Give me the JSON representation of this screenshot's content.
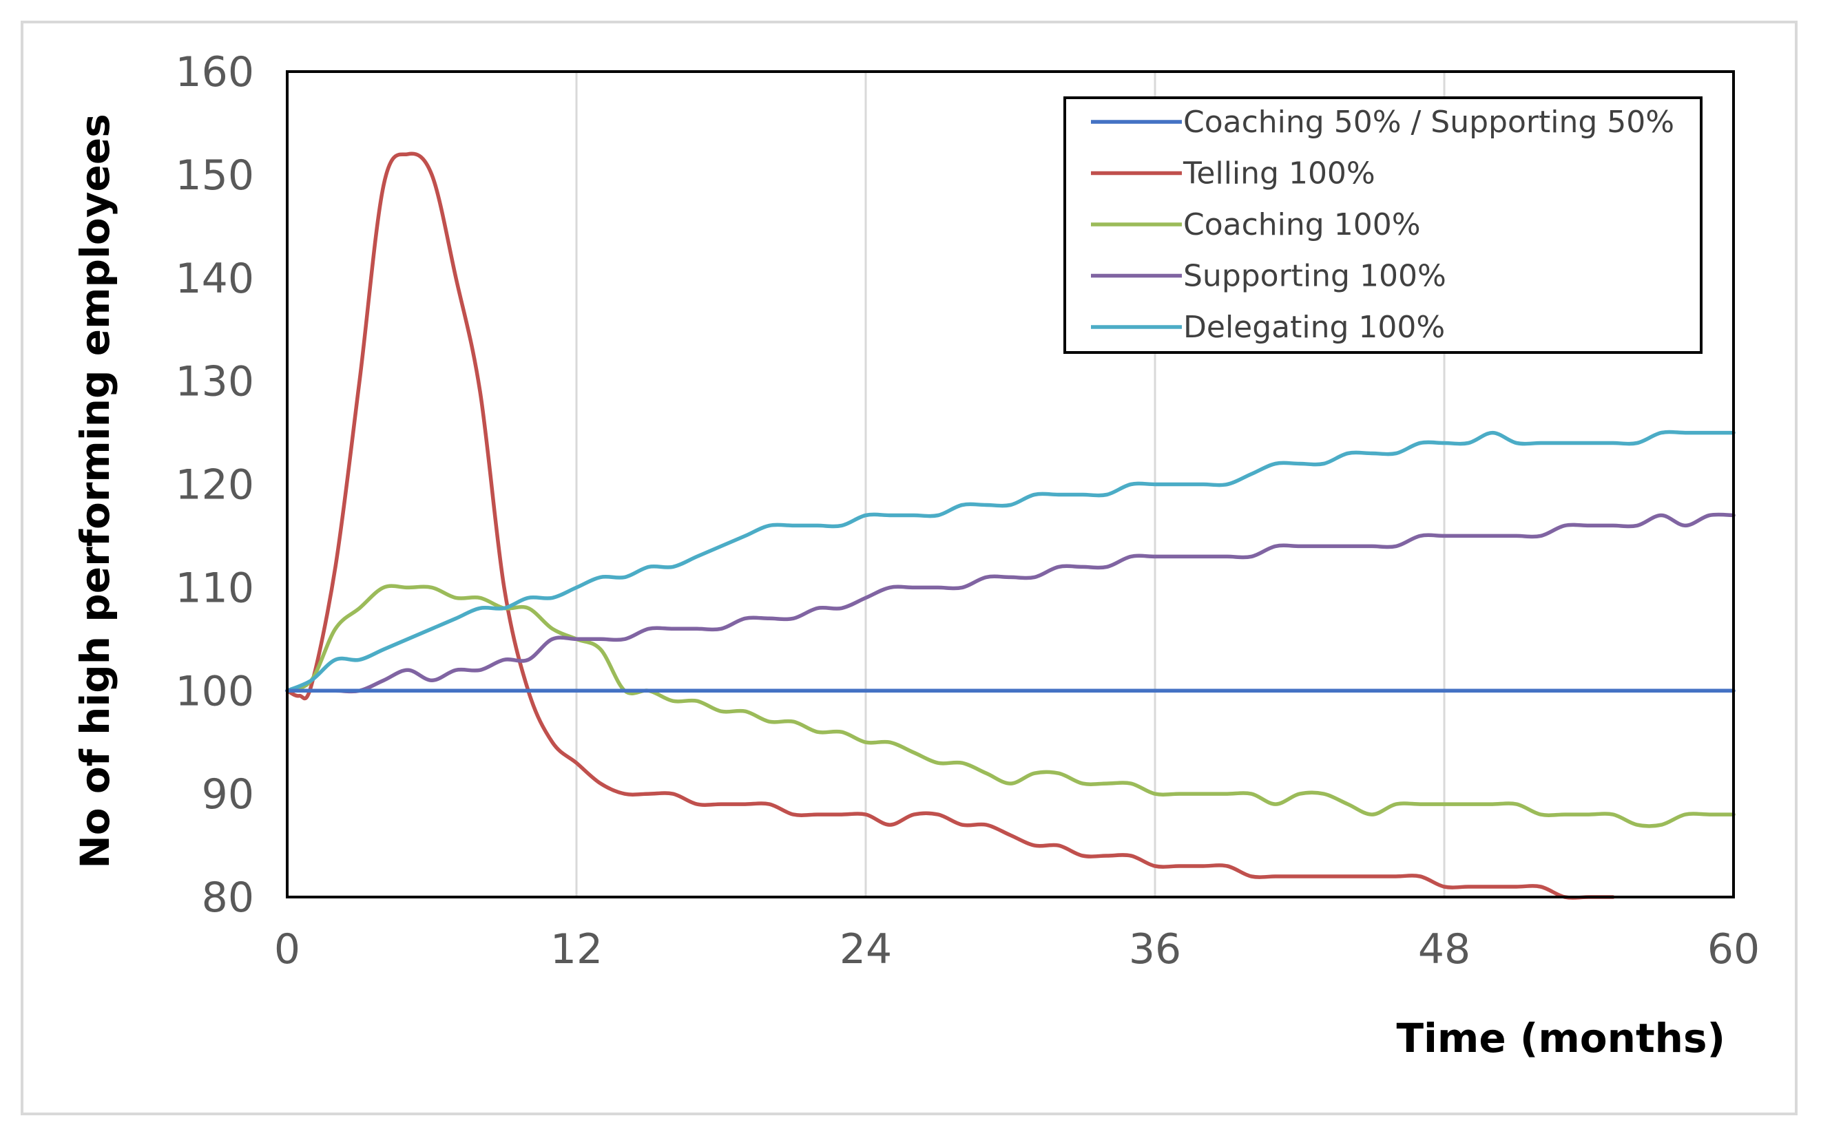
{
  "chart_data": {
    "type": "line",
    "title": "",
    "xlabel": "Time (months)",
    "ylabel": "No of high performing employees",
    "xlim": [
      0,
      60
    ],
    "ylim": [
      80,
      160
    ],
    "x_ticks": [
      0,
      12,
      24,
      36,
      48,
      60
    ],
    "y_ticks": [
      80,
      90,
      100,
      110,
      120,
      130,
      140,
      150,
      160
    ],
    "grid": "vertical gridlines at x ticks",
    "legend_position": "top-right",
    "series": [
      {
        "name": "Coaching 50% / Supporting 50%",
        "color": "#4472C4",
        "points": [
          [
            0,
            100
          ],
          [
            60,
            100
          ]
        ]
      },
      {
        "name": "Telling 100%",
        "color": "#C0504D",
        "points": [
          [
            0,
            100
          ],
          [
            0.5,
            99.5
          ],
          [
            1,
            100.5
          ],
          [
            2,
            112
          ],
          [
            3,
            130
          ],
          [
            4,
            149
          ],
          [
            5,
            152
          ],
          [
            6,
            150
          ],
          [
            7,
            140
          ],
          [
            8,
            129
          ],
          [
            9,
            110
          ],
          [
            10,
            100
          ],
          [
            11,
            95
          ],
          [
            12,
            93
          ],
          [
            13,
            91
          ],
          [
            14,
            90
          ],
          [
            15,
            90
          ],
          [
            16,
            90
          ],
          [
            17,
            89
          ],
          [
            18,
            89
          ],
          [
            19,
            89
          ],
          [
            20,
            89
          ],
          [
            21,
            88
          ],
          [
            22,
            88
          ],
          [
            23,
            88
          ],
          [
            24,
            88
          ],
          [
            25,
            87
          ],
          [
            26,
            88
          ],
          [
            27,
            88
          ],
          [
            28,
            87
          ],
          [
            29,
            87
          ],
          [
            30,
            86
          ],
          [
            31,
            85
          ],
          [
            32,
            85
          ],
          [
            33,
            84
          ],
          [
            34,
            84
          ],
          [
            35,
            84
          ],
          [
            36,
            83
          ],
          [
            37,
            83
          ],
          [
            38,
            83
          ],
          [
            39,
            83
          ],
          [
            40,
            82
          ],
          [
            41,
            82
          ],
          [
            42,
            82
          ],
          [
            43,
            82
          ],
          [
            44,
            82
          ],
          [
            45,
            82
          ],
          [
            46,
            82
          ],
          [
            47,
            82
          ],
          [
            48,
            81
          ],
          [
            49,
            81
          ],
          [
            50,
            81
          ],
          [
            51,
            81
          ],
          [
            52,
            81
          ],
          [
            53,
            80
          ],
          [
            54,
            80
          ],
          [
            55,
            80
          ]
        ]
      },
      {
        "name": "Coaching 100%",
        "color": "#9BBB59",
        "points": [
          [
            0,
            100
          ],
          [
            1,
            101
          ],
          [
            2,
            106
          ],
          [
            3,
            108
          ],
          [
            4,
            110
          ],
          [
            5,
            110
          ],
          [
            6,
            110
          ],
          [
            7,
            109
          ],
          [
            8,
            109
          ],
          [
            9,
            108
          ],
          [
            10,
            108
          ],
          [
            11,
            106
          ],
          [
            12,
            105
          ],
          [
            13,
            104
          ],
          [
            14,
            100
          ],
          [
            15,
            100
          ],
          [
            16,
            99
          ],
          [
            17,
            99
          ],
          [
            18,
            98
          ],
          [
            19,
            98
          ],
          [
            20,
            97
          ],
          [
            21,
            97
          ],
          [
            22,
            96
          ],
          [
            23,
            96
          ],
          [
            24,
            95
          ],
          [
            25,
            95
          ],
          [
            26,
            94
          ],
          [
            27,
            93
          ],
          [
            28,
            93
          ],
          [
            29,
            92
          ],
          [
            30,
            91
          ],
          [
            31,
            92
          ],
          [
            32,
            92
          ],
          [
            33,
            91
          ],
          [
            34,
            91
          ],
          [
            35,
            91
          ],
          [
            36,
            90
          ],
          [
            37,
            90
          ],
          [
            38,
            90
          ],
          [
            39,
            90
          ],
          [
            40,
            90
          ],
          [
            41,
            89
          ],
          [
            42,
            90
          ],
          [
            43,
            90
          ],
          [
            44,
            89
          ],
          [
            45,
            88
          ],
          [
            46,
            89
          ],
          [
            47,
            89
          ],
          [
            48,
            89
          ],
          [
            49,
            89
          ],
          [
            50,
            89
          ],
          [
            51,
            89
          ],
          [
            52,
            88
          ],
          [
            53,
            88
          ],
          [
            54,
            88
          ],
          [
            55,
            88
          ],
          [
            56,
            87
          ],
          [
            57,
            87
          ],
          [
            58,
            88
          ],
          [
            59,
            88
          ],
          [
            60,
            88
          ]
        ]
      },
      {
        "name": "Supporting 100%",
        "color": "#8064A2",
        "points": [
          [
            0,
            100
          ],
          [
            1,
            100
          ],
          [
            2,
            100
          ],
          [
            3,
            100
          ],
          [
            4,
            101
          ],
          [
            5,
            102
          ],
          [
            6,
            101
          ],
          [
            7,
            102
          ],
          [
            8,
            102
          ],
          [
            9,
            103
          ],
          [
            10,
            103
          ],
          [
            11,
            105
          ],
          [
            12,
            105
          ],
          [
            13,
            105
          ],
          [
            14,
            105
          ],
          [
            15,
            106
          ],
          [
            16,
            106
          ],
          [
            17,
            106
          ],
          [
            18,
            106
          ],
          [
            19,
            107
          ],
          [
            20,
            107
          ],
          [
            21,
            107
          ],
          [
            22,
            108
          ],
          [
            23,
            108
          ],
          [
            24,
            109
          ],
          [
            25,
            110
          ],
          [
            26,
            110
          ],
          [
            27,
            110
          ],
          [
            28,
            110
          ],
          [
            29,
            111
          ],
          [
            30,
            111
          ],
          [
            31,
            111
          ],
          [
            32,
            112
          ],
          [
            33,
            112
          ],
          [
            34,
            112
          ],
          [
            35,
            113
          ],
          [
            36,
            113
          ],
          [
            37,
            113
          ],
          [
            38,
            113
          ],
          [
            39,
            113
          ],
          [
            40,
            113
          ],
          [
            41,
            114
          ],
          [
            42,
            114
          ],
          [
            43,
            114
          ],
          [
            44,
            114
          ],
          [
            45,
            114
          ],
          [
            46,
            114
          ],
          [
            47,
            115
          ],
          [
            48,
            115
          ],
          [
            49,
            115
          ],
          [
            50,
            115
          ],
          [
            51,
            115
          ],
          [
            52,
            115
          ],
          [
            53,
            116
          ],
          [
            54,
            116
          ],
          [
            55,
            116
          ],
          [
            56,
            116
          ],
          [
            57,
            117
          ],
          [
            58,
            116
          ],
          [
            59,
            117
          ],
          [
            60,
            117
          ]
        ]
      },
      {
        "name": "Delegating 100%",
        "color": "#4BACC6",
        "points": [
          [
            0,
            100
          ],
          [
            1,
            101
          ],
          [
            2,
            103
          ],
          [
            3,
            103
          ],
          [
            4,
            104
          ],
          [
            5,
            105
          ],
          [
            6,
            106
          ],
          [
            7,
            107
          ],
          [
            8,
            108
          ],
          [
            9,
            108
          ],
          [
            10,
            109
          ],
          [
            11,
            109
          ],
          [
            12,
            110
          ],
          [
            13,
            111
          ],
          [
            14,
            111
          ],
          [
            15,
            112
          ],
          [
            16,
            112
          ],
          [
            17,
            113
          ],
          [
            18,
            114
          ],
          [
            19,
            115
          ],
          [
            20,
            116
          ],
          [
            21,
            116
          ],
          [
            22,
            116
          ],
          [
            23,
            116
          ],
          [
            24,
            117
          ],
          [
            25,
            117
          ],
          [
            26,
            117
          ],
          [
            27,
            117
          ],
          [
            28,
            118
          ],
          [
            29,
            118
          ],
          [
            30,
            118
          ],
          [
            31,
            119
          ],
          [
            32,
            119
          ],
          [
            33,
            119
          ],
          [
            34,
            119
          ],
          [
            35,
            120
          ],
          [
            36,
            120
          ],
          [
            37,
            120
          ],
          [
            38,
            120
          ],
          [
            39,
            120
          ],
          [
            40,
            121
          ],
          [
            41,
            122
          ],
          [
            42,
            122
          ],
          [
            43,
            122
          ],
          [
            44,
            123
          ],
          [
            45,
            123
          ],
          [
            46,
            123
          ],
          [
            47,
            124
          ],
          [
            48,
            124
          ],
          [
            49,
            124
          ],
          [
            50,
            125
          ],
          [
            51,
            124
          ],
          [
            52,
            124
          ],
          [
            53,
            124
          ],
          [
            54,
            124
          ],
          [
            55,
            124
          ],
          [
            56,
            124
          ],
          [
            57,
            125
          ],
          [
            58,
            125
          ],
          [
            59,
            125
          ],
          [
            60,
            125
          ]
        ]
      }
    ]
  }
}
